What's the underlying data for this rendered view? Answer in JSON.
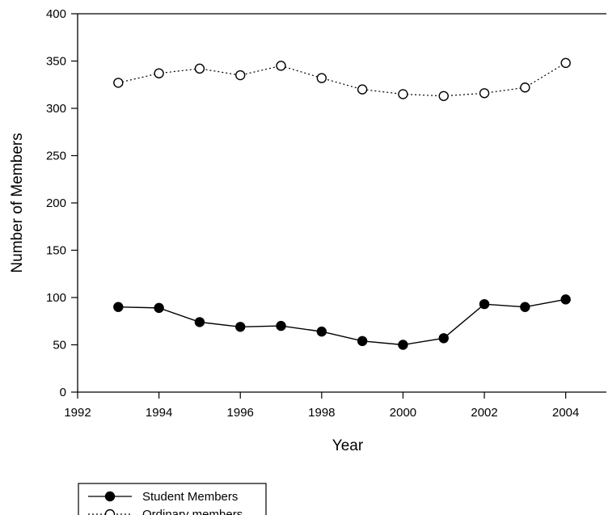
{
  "chart_data": {
    "type": "line",
    "title": "",
    "xlabel": "Year",
    "ylabel": "Number of Members",
    "xlim": [
      1992,
      2005
    ],
    "ylim": [
      0,
      400
    ],
    "xticks": [
      1992,
      1994,
      1996,
      1998,
      2000,
      2002,
      2004
    ],
    "yticks": [
      0,
      50,
      100,
      150,
      200,
      250,
      300,
      350,
      400
    ],
    "grid": false,
    "legend_position": "bottom-left",
    "x": [
      1993,
      1994,
      1995,
      1996,
      1997,
      1998,
      1999,
      2000,
      2001,
      2002,
      2003,
      2004
    ],
    "series": [
      {
        "name": "Student Members",
        "values": [
          90,
          89,
          74,
          69,
          70,
          64,
          54,
          50,
          57,
          93,
          90,
          98
        ],
        "line": "solid",
        "marker": "filled-circle",
        "color": "#000000"
      },
      {
        "name": "Ordinary members",
        "values": [
          327,
          337,
          342,
          335,
          345,
          332,
          320,
          315,
          313,
          316,
          322,
          348
        ],
        "line": "dotted",
        "marker": "open-circle",
        "color": "#000000"
      }
    ]
  }
}
